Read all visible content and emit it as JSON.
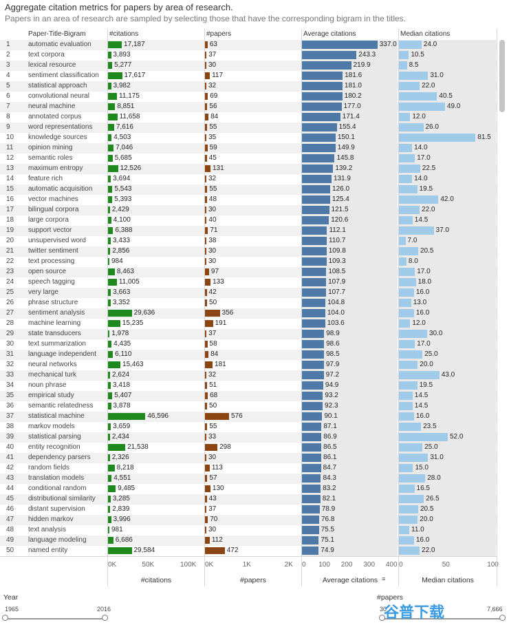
{
  "title": "Aggregate citation metrics for papers by area of research.",
  "subtitle": "Papers in an area of research are sampled by selecting those that have the corresponding  bigram in the titles.",
  "headers": {
    "bigram": "Paper-Title-Bigram",
    "citations": "#citations",
    "papers": "#papers",
    "avg": "Average citations",
    "median": "Median citations"
  },
  "colors": {
    "citations": "#1e8a1e",
    "papers": "#8b4513",
    "avg": "#4e79a7",
    "median": "#a0cbe8"
  },
  "chart_data": {
    "type": "bar",
    "title": "Aggregate citation metrics for papers by area of research.",
    "categories": [
      "automatic evaluation",
      "text corpora",
      "lexical resource",
      "sentiment classification",
      "statistical approach",
      "convolutional neural",
      "neural machine",
      "annotated corpus",
      "word representations",
      "knowledge sources",
      "opinion mining",
      "semantic roles",
      "maximum entropy",
      "feature rich",
      "automatic acquisition",
      "vector machines",
      "bilingual corpora",
      "large corpora",
      "support vector",
      "unsupervised word",
      "twitter sentiment",
      "text processing",
      "open source",
      "speech tagging",
      "very large",
      "phrase structure",
      "sentiment analysis",
      "machine learning",
      "state transducers",
      "text summarization",
      "language independent",
      "neural networks",
      "mechanical turk",
      "noun phrase",
      "empirical study",
      "semantic relatedness",
      "statistical machine",
      "markov models",
      "statistical parsing",
      "entity recognition",
      "dependency parsers",
      "random fields",
      "translation models",
      "conditional random",
      "distributional similarity",
      "distant supervision",
      "hidden markov",
      "text analysis",
      "language modeling",
      "named entity"
    ],
    "ranks": [
      "1",
      "2",
      "3",
      "4",
      "5",
      "6",
      "7",
      "8",
      "9",
      "10",
      "11",
      "12",
      "13",
      "14",
      "15",
      "16",
      "17",
      "18",
      "19",
      "20",
      "21",
      "22",
      "23",
      "24",
      "25",
      "26",
      "27",
      "28",
      "29",
      "30",
      "31",
      "32",
      "33",
      "34",
      "35",
      "36",
      "37",
      "38",
      "39",
      "40",
      "41",
      "42",
      "43",
      "44",
      "45",
      "46",
      "47",
      "48",
      "49",
      "50"
    ],
    "series": [
      {
        "name": "#citations",
        "values": [
          17187,
          3893,
          5277,
          17617,
          3982,
          11175,
          8851,
          11658,
          7616,
          4503,
          7046,
          5685,
          12526,
          3694,
          5543,
          5393,
          2429,
          4100,
          6388,
          3433,
          2856,
          984,
          8463,
          11005,
          3663,
          3352,
          29636,
          15235,
          1978,
          4435,
          6110,
          15463,
          2624,
          3418,
          5407,
          3878,
          46596,
          3659,
          2434,
          21538,
          2326,
          8218,
          4551,
          9485,
          3285,
          2839,
          3996,
          981,
          6686,
          29584
        ]
      },
      {
        "name": "#papers",
        "values": [
          63,
          37,
          30,
          117,
          32,
          69,
          56,
          84,
          55,
          35,
          59,
          45,
          131,
          32,
          55,
          48,
          30,
          40,
          71,
          38,
          30,
          30,
          97,
          133,
          42,
          50,
          356,
          191,
          37,
          58,
          84,
          181,
          32,
          51,
          68,
          50,
          576,
          55,
          33,
          298,
          30,
          113,
          57,
          130,
          43,
          37,
          70,
          30,
          112,
          472
        ]
      },
      {
        "name": "Average citations",
        "values": [
          337.0,
          243.3,
          219.9,
          181.6,
          181.0,
          180.2,
          177.0,
          171.4,
          155.4,
          150.1,
          149.9,
          145.8,
          139.2,
          131.9,
          126.0,
          125.4,
          121.5,
          120.6,
          112.1,
          110.7,
          109.8,
          109.3,
          108.5,
          107.9,
          107.7,
          104.8,
          104.0,
          103.6,
          98.9,
          98.6,
          98.5,
          97.9,
          97.2,
          94.9,
          93.2,
          92.3,
          90.1,
          87.1,
          86.9,
          86.5,
          86.1,
          84.7,
          84.3,
          83.2,
          82.1,
          78.9,
          76.8,
          75.5,
          75.1,
          74.9
        ]
      },
      {
        "name": "Median citations",
        "values": [
          24.0,
          10.5,
          8.5,
          31.0,
          22.0,
          40.5,
          49.0,
          12.0,
          26.0,
          81.5,
          14.0,
          17.0,
          22.5,
          14.0,
          19.5,
          42.0,
          22.0,
          14.5,
          37.0,
          7.0,
          20.5,
          8.0,
          17.0,
          18.0,
          16.0,
          13.0,
          16.0,
          12.0,
          30.0,
          17.0,
          25.0,
          20.0,
          43.0,
          19.5,
          14.5,
          14.5,
          16.0,
          23.5,
          52.0,
          25.0,
          31.0,
          15.0,
          28.0,
          16.5,
          26.5,
          20.5,
          20.0,
          11.0,
          16.0,
          22.0
        ]
      }
    ],
    "labels": {
      "citations": [
        "17,187",
        "3,893",
        "5,277",
        "17,617",
        "3,982",
        "11,175",
        "8,851",
        "11,658",
        "7,616",
        "4,503",
        "7,046",
        "5,685",
        "12,526",
        "3,694",
        "5,543",
        "5,393",
        "2,429",
        "4,100",
        "6,388",
        "3,433",
        "2,856",
        "984",
        "8,463",
        "11,005",
        "3,663",
        "3,352",
        "29,636",
        "15,235",
        "1,978",
        "4,435",
        "6,110",
        "15,463",
        "2,624",
        "3,418",
        "5,407",
        "3,878",
        "46,596",
        "3,659",
        "2,434",
        "21,538",
        "2,326",
        "8,218",
        "4,551",
        "9,485",
        "3,285",
        "2,839",
        "3,996",
        "981",
        "6,686",
        "29,584"
      ],
      "papers": [
        "63",
        "37",
        "30",
        "117",
        "32",
        "69",
        "56",
        "84",
        "55",
        "35",
        "59",
        "45",
        "131",
        "32",
        "55",
        "48",
        "30",
        "40",
        "71",
        "38",
        "30",
        "30",
        "97",
        "133",
        "42",
        "50",
        "356",
        "191",
        "37",
        "58",
        "84",
        "181",
        "32",
        "51",
        "68",
        "50",
        "576",
        "55",
        "33",
        "298",
        "30",
        "113",
        "57",
        "130",
        "43",
        "37",
        "70",
        "30",
        "112",
        "472"
      ],
      "avg": [
        "337.0",
        "243.3",
        "219.9",
        "181.6",
        "181.0",
        "180.2",
        "177.0",
        "171.4",
        "155.4",
        "150.1",
        "149.9",
        "145.8",
        "139.2",
        "131.9",
        "126.0",
        "125.4",
        "121.5",
        "120.6",
        "112.1",
        "110.7",
        "109.8",
        "109.3",
        "108.5",
        "107.9",
        "107.7",
        "104.8",
        "104.0",
        "103.6",
        "98.9",
        "98.6",
        "98.5",
        "97.9",
        "97.2",
        "94.9",
        "93.2",
        "92.3",
        "90.1",
        "87.1",
        "86.9",
        "86.5",
        "86.1",
        "84.7",
        "84.3",
        "83.2",
        "82.1",
        "78.9",
        "76.8",
        "75.5",
        "75.1",
        "74.9"
      ],
      "median": [
        "24.0",
        "10.5",
        "8.5",
        "31.0",
        "22.0",
        "40.5",
        "49.0",
        "12.0",
        "26.0",
        "81.5",
        "14.0",
        "17.0",
        "22.5",
        "14.0",
        "19.5",
        "42.0",
        "22.0",
        "14.5",
        "37.0",
        "7.0",
        "20.5",
        "8.0",
        "17.0",
        "18.0",
        "16.0",
        "13.0",
        "16.0",
        "12.0",
        "30.0",
        "17.0",
        "25.0",
        "20.0",
        "43.0",
        "19.5",
        "14.5",
        "14.5",
        "16.0",
        "23.5",
        "52.0",
        "25.0",
        "31.0",
        "15.0",
        "28.0",
        "16.5",
        "26.5",
        "20.5",
        "20.0",
        "11.0",
        "16.0",
        "22.0"
      ]
    },
    "axes": {
      "citations": {
        "label": "#citations",
        "ticks": [
          "0K",
          "50K",
          "100K"
        ],
        "tick_values": [
          0,
          50000,
          100000
        ],
        "range": [
          0,
          120000
        ]
      },
      "papers": {
        "label": "#papers",
        "ticks": [
          "0K",
          "1K",
          "2K"
        ],
        "tick_values": [
          0,
          1000,
          2000
        ],
        "range": [
          0,
          2300
        ]
      },
      "avg": {
        "label": "Average citations",
        "ticks": [
          "0",
          "100",
          "200",
          "300",
          "400"
        ],
        "tick_values": [
          0,
          100,
          200,
          300,
          400
        ],
        "range": [
          0,
          430
        ]
      },
      "median": {
        "label": "Median citations",
        "ticks": [
          "0",
          "50",
          "100"
        ],
        "tick_values": [
          0,
          50,
          100
        ],
        "range": [
          0,
          104
        ]
      }
    },
    "grid": false,
    "legend": "none"
  },
  "filters": {
    "year": {
      "label": "Year",
      "min": "1965",
      "max": "2016"
    },
    "papers": {
      "label": "#papers",
      "min": "30",
      "max": "7,666"
    }
  },
  "watermark": "谷普下载"
}
